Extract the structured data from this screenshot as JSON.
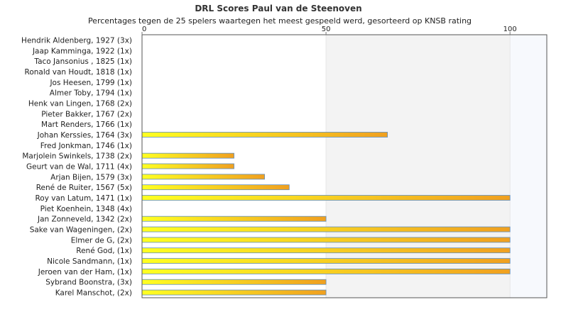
{
  "chart_data": {
    "type": "bar",
    "orientation": "horizontal",
    "title": "DRL Scores Paul van de Steenoven",
    "subtitle": "Percentages tegen de 25 spelers waartegen het meest gespeeld werd, gesorteerd op KNSB rating",
    "categories": [
      "Hendrik Aldenberg, 1927 (3x)",
      "Jaap Kamminga, 1922 (1x)",
      "Taco Jansonius , 1825 (1x)",
      "Ronald van Houdt, 1818 (1x)",
      "Jos Heesen, 1799 (1x)",
      "Almer Toby, 1794 (1x)",
      "Henk van Lingen, 1768 (2x)",
      "Pieter Bakker, 1767 (2x)",
      "Mart Renders, 1766 (1x)",
      "Johan Kerssies, 1764 (3x)",
      "Fred Jonkman, 1746 (1x)",
      "Marjolein Swinkels, 1738 (2x)",
      "Geurt van de Wal, 1711 (4x)",
      "Arjan Bijen, 1579 (3x)",
      "René de Ruiter, 1567 (5x)",
      "Roy van Latum, 1471 (1x)",
      "Piet Koenhein, 1348 (4x)",
      "Jan Zonneveld, 1342 (2x)",
      "Sake van Wageningen,  (2x)",
      "Elmer de G,  (2x)",
      "René God,  (1x)",
      "Nicole Sandmann,  (1x)",
      "Jeroen van der Ham,  (1x)",
      "Sybrand Boonstra,  (3x)",
      "Karel Manschot,  (2x)"
    ],
    "values": [
      0,
      0,
      0,
      0,
      0,
      0,
      0,
      0,
      0,
      66.7,
      0,
      25,
      25,
      33.3,
      40,
      100,
      0,
      50,
      100,
      100,
      100,
      100,
      100,
      50,
      50
    ],
    "xlim": [
      0,
      110
    ],
    "ticks": [
      0,
      50,
      100
    ],
    "tick_labels": [
      "0",
      "50",
      "100"
    ],
    "axis_position": "top",
    "grid": true,
    "legend": "none",
    "colors": {
      "bar_start": "#ffff22",
      "bar_end": "#f0a020",
      "bar_border": "#5f8fbf",
      "band_dark": "#f3f3f3",
      "band_light": "#f7f9fd",
      "gridline": "#e6e6e6",
      "plot_border": "#555555"
    }
  }
}
